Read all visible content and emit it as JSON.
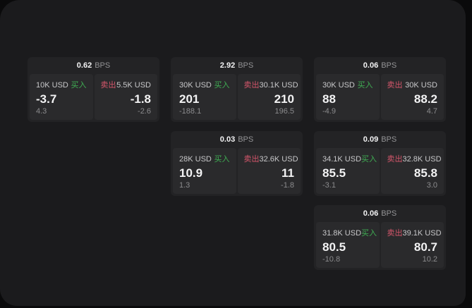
{
  "colors": {
    "page_bg": "#0a0a0b",
    "panel_bg": "#1b1b1d",
    "card_bg": "#232325",
    "tile_bg": "#2a2a2c",
    "text_primary": "#f3f3f4",
    "text_secondary": "#c8c8ca",
    "text_muted": "#949496",
    "text_dim": "#8b8b8d",
    "buy_green": "#3fae53",
    "sell_red": "#d5566b"
  },
  "labels": {
    "bps_unit": "BPS",
    "buy": "买入",
    "sell": "卖出"
  },
  "cards": [
    {
      "bps": "0.62",
      "buy": {
        "amount": "10K USD",
        "price": "-3.7",
        "delta": "4.3"
      },
      "sell": {
        "amount": "5.5K USD",
        "price": "-1.8",
        "delta": "-2.6"
      }
    },
    {
      "bps": "2.92",
      "buy": {
        "amount": "30K USD",
        "price": "201",
        "delta": "-188.1"
      },
      "sell": {
        "amount": "30.1K USD",
        "price": "210",
        "delta": "196.5"
      }
    },
    {
      "bps": "0.06",
      "buy": {
        "amount": "30K USD",
        "price": "88",
        "delta": "-4.9"
      },
      "sell": {
        "amount": "30K USD",
        "price": "88.2",
        "delta": "4.7"
      }
    },
    {
      "bps": "0.03",
      "buy": {
        "amount": "28K USD",
        "price": "10.9",
        "delta": "1.3"
      },
      "sell": {
        "amount": "32.6K USD",
        "price": "11",
        "delta": "-1.8"
      }
    },
    {
      "bps": "0.09",
      "buy": {
        "amount": "34.1K USD",
        "price": "85.5",
        "delta": "-3.1"
      },
      "sell": {
        "amount": "32.8K USD",
        "price": "85.8",
        "delta": "3.0"
      }
    },
    {
      "bps": "0.06",
      "buy": {
        "amount": "31.8K USD",
        "price": "80.5",
        "delta": "-10.8"
      },
      "sell": {
        "amount": "39.1K USD",
        "price": "80.7",
        "delta": "10.2"
      }
    }
  ]
}
